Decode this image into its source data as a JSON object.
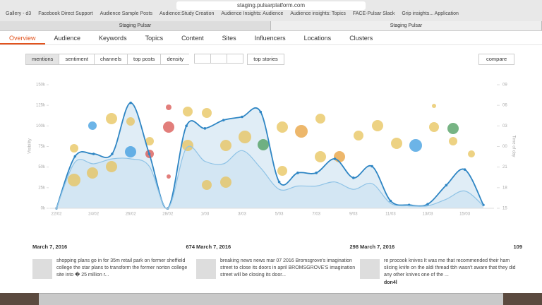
{
  "browser": {
    "url": "staging.pulsarplatform.com",
    "bookmarks": [
      "Gallery - d3",
      "Facebook Direct Support",
      "Audience Sample Posts",
      "Audience:Study Creation",
      "Audience Insights: Audience",
      "Audience insights: Topics",
      "FACE-Pulsar Slack",
      "Grip insights... Application"
    ],
    "tabs": [
      "Staging Pulsar",
      "Staging Pulsar"
    ]
  },
  "nav": [
    "Overview",
    "Audience",
    "Keywords",
    "Topics",
    "Content",
    "Sites",
    "Influencers",
    "Locations",
    "Clusters"
  ],
  "toolbar": {
    "buttons": [
      "mentions",
      "sentiment",
      "channels",
      "top posts",
      "density"
    ],
    "toggle": "top stories",
    "compare": "compare"
  },
  "chart_data": {
    "type": "line",
    "y_label": "Visibility",
    "y2_label": "Time of day",
    "categories": [
      "22/02",
      null,
      "24/02",
      null,
      "26/02",
      null,
      "28/02",
      null,
      "1/03",
      null,
      "3/03",
      null,
      "5/03",
      null,
      "7/03",
      null,
      "9/03",
      null,
      "11/03",
      null,
      "13/03",
      null,
      "15/03",
      null
    ],
    "series": [
      {
        "color": "#2f86c4",
        "values": [
          0,
          63000,
          66000,
          66000,
          128000,
          66000,
          0,
          100000,
          97000,
          107000,
          111000,
          117000,
          32000,
          43000,
          43000,
          60000,
          37000,
          51000,
          9000,
          4000,
          5000,
          28000,
          47000,
          4000
        ]
      },
      {
        "color": "#8fc3e6",
        "values": [
          0,
          56000,
          54000,
          60000,
          60000,
          51000,
          0,
          73000,
          57000,
          54000,
          70000,
          49000,
          23000,
          27000,
          27000,
          32000,
          23000,
          30000,
          6000,
          3000,
          3000,
          11000,
          21000,
          3000
        ]
      }
    ],
    "ylim": [
      0,
      150000
    ],
    "yticks": [
      {
        "value": 0,
        "label": "0k"
      },
      {
        "value": 25000,
        "label": "25k"
      },
      {
        "value": 50000,
        "label": "50k"
      },
      {
        "value": 75000,
        "label": "75k"
      },
      {
        "value": 100000,
        "label": "100k"
      },
      {
        "value": 125000,
        "label": "125k"
      },
      {
        "value": 150000,
        "label": "150k"
      }
    ],
    "y2lim": [
      15,
      33
    ],
    "y2ticks": [
      15,
      18,
      21,
      {
        "value": 24,
        "label": "00"
      },
      {
        "value": 27,
        "label": "03"
      },
      {
        "value": 30,
        "label": "06"
      },
      {
        "value": 33,
        "label": "09"
      }
    ]
  },
  "posts": [
    {
      "date": "March 7, 2016",
      "count": "674",
      "text": "shopping plans go in for 35m retail park on former sheffield college the star plans to transform the former norton college site into � 25 million r..."
    },
    {
      "date": "March 7, 2016",
      "count": "298",
      "text": "breaking news news mar 07 2016 Bromsgrove's imagination street to close its doors in april BROMSGROVE'S imagination street will be closing its door..."
    },
    {
      "date": "March 7, 2016",
      "count": "109",
      "text": "re procook knives It was me that recommended their ham slicing knife on the aldi thread tbh wasn't aware that they did any other knives one of the ...",
      "author": "don4l"
    }
  ]
}
